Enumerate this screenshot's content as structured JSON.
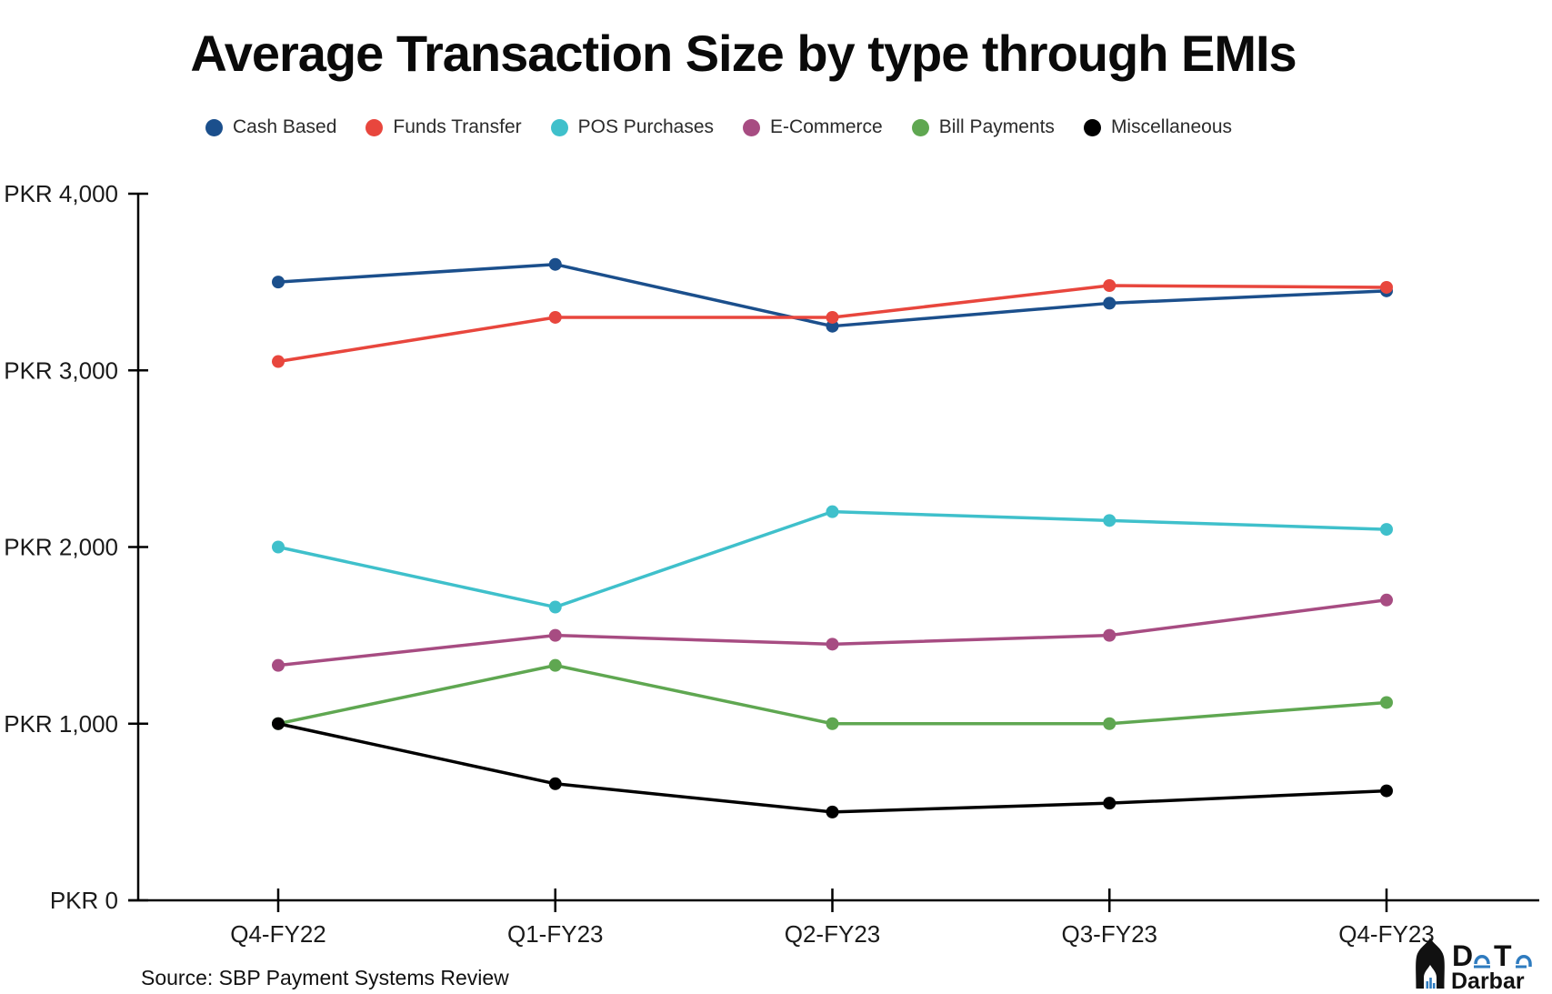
{
  "chart_data": {
    "type": "line",
    "title": "Average Transaction Size by type through EMIs",
    "categories": [
      "Q4-FY22",
      "Q1-FY23",
      "Q2-FY23",
      "Q3-FY23",
      "Q4-FY23"
    ],
    "series": [
      {
        "name": "Cash Based",
        "color": "#1b4f8c",
        "values": [
          3500,
          3600,
          3250,
          3380,
          3450
        ]
      },
      {
        "name": "Funds Transfer",
        "color": "#e8463d",
        "values": [
          3050,
          3300,
          3300,
          3480,
          3470
        ]
      },
      {
        "name": "POS Purchases",
        "color": "#3fc0cb",
        "values": [
          2000,
          1660,
          2200,
          2150,
          2100
        ]
      },
      {
        "name": "E-Commerce",
        "color": "#a74c82",
        "values": [
          1330,
          1500,
          1450,
          1500,
          1700
        ]
      },
      {
        "name": "Bill Payments",
        "color": "#5fa751",
        "values": [
          1000,
          1330,
          1000,
          1000,
          1120
        ]
      },
      {
        "name": "Miscellaneous",
        "color": "#000000",
        "values": [
          1000,
          660,
          500,
          550,
          620
        ]
      }
    ],
    "ylim": [
      0,
      4000
    ],
    "ytick_step": 1000,
    "ytick_labels": [
      "PKR 0",
      "PKR 1,000",
      "PKR 2,000",
      "PKR 3,000",
      "PKR 4,000"
    ],
    "grid": false,
    "legend_position": "top",
    "axis_color": "#000000",
    "tick_label_color": "#1a1a1a"
  },
  "source_note": "Source: SBP Payment Systems Review",
  "logo": {
    "letter_d": "D",
    "letter_t": "T",
    "wordmark": "Darbar",
    "accent_color": "#2e7bbf",
    "ink_color": "#111111"
  }
}
